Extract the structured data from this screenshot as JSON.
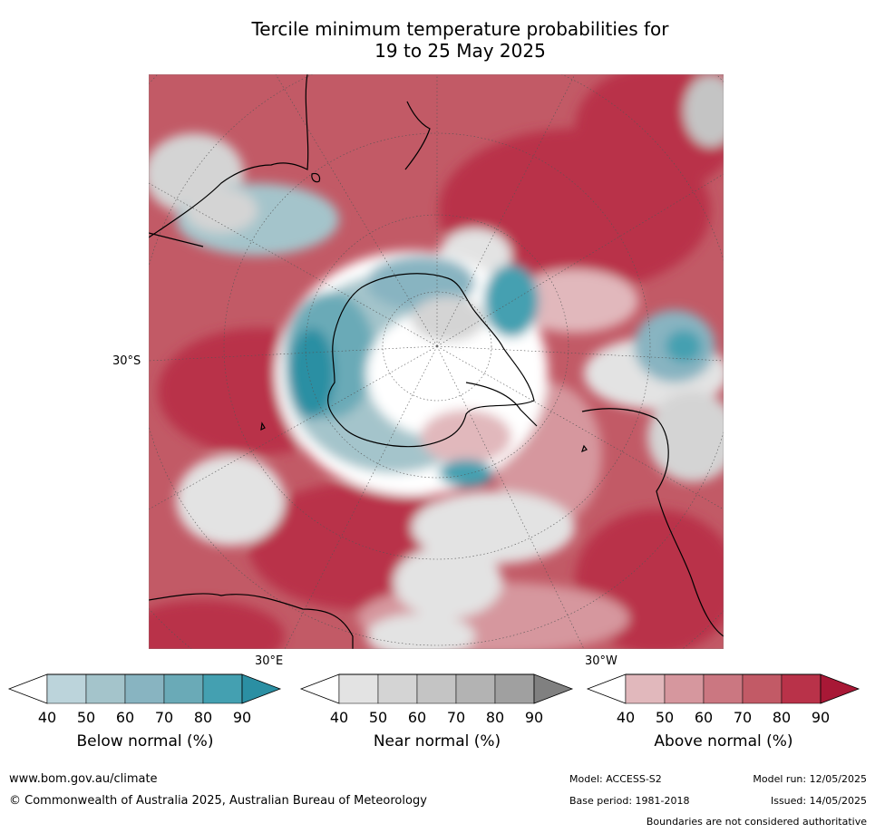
{
  "title_line1": "Tercile minimum temperature probabilities for",
  "title_line2": "19 to 25 May 2025",
  "map": {
    "projection": "polar-stereographic-south",
    "lat_label": "30°S",
    "lon_label_east": "30°E",
    "lon_label_west": "30°W",
    "colors": {
      "above": [
        "#e1b8bc",
        "#d6979e",
        "#cb7781",
        "#c25a66",
        "#b93249",
        "#a81836"
      ],
      "near": [
        "#e3e3e3",
        "#d4d4d4",
        "#c4c4c4",
        "#b3b3b3",
        "#a0a0a0",
        "#808080"
      ],
      "below": [
        "#bcd4db",
        "#a4c4cb",
        "#88b4c1",
        "#6aaab7",
        "#44a0b1",
        "#2b8fa3"
      ]
    }
  },
  "legends": [
    {
      "id": "below",
      "label": "Below normal (%)",
      "ticks": [
        "40",
        "50",
        "60",
        "70",
        "80",
        "90"
      ],
      "colors": [
        "#bcd4db",
        "#a4c4cb",
        "#88b4c1",
        "#6aaab7",
        "#44a0b1",
        "#2b8fa3"
      ]
    },
    {
      "id": "near",
      "label": "Near normal (%)",
      "ticks": [
        "40",
        "50",
        "60",
        "70",
        "80",
        "90"
      ],
      "colors": [
        "#e3e3e3",
        "#d4d4d4",
        "#c4c4c4",
        "#b3b3b3",
        "#a0a0a0",
        "#808080"
      ]
    },
    {
      "id": "above",
      "label": "Above normal (%)",
      "ticks": [
        "40",
        "50",
        "60",
        "70",
        "80",
        "90"
      ],
      "colors": [
        "#e1b8bc",
        "#d6979e",
        "#cb7781",
        "#c25a66",
        "#b93249",
        "#a81836"
      ]
    }
  ],
  "footer": {
    "website": "www.bom.gov.au/climate",
    "copyright": "© Commonwealth of Australia 2025, Australian Bureau of Meteorology",
    "model": "Model: ACCESS-S2",
    "model_run": "Model run: 12/05/2025",
    "base_period": "Base period: 1981-2018",
    "issued": "Issued: 14/05/2025",
    "disclaimer": "Boundaries are not considered authoritative"
  }
}
